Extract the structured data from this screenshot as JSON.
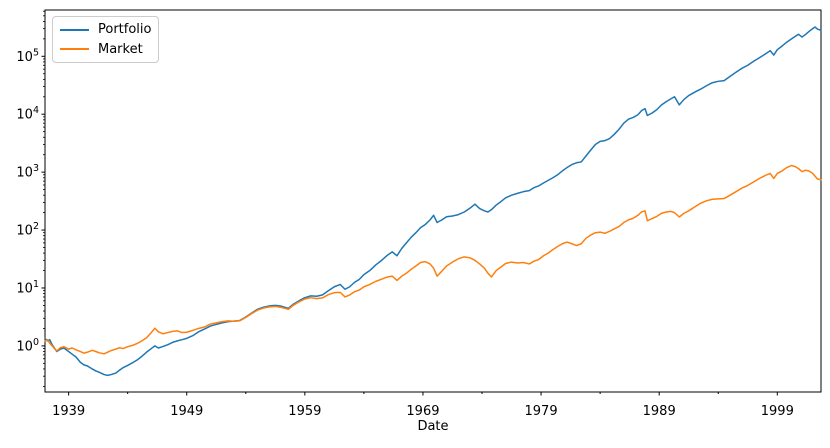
{
  "chart_data": {
    "type": "line",
    "title": "",
    "xlabel": "Date",
    "ylabel": "",
    "x_scale": "linear",
    "y_scale": "log",
    "grid": false,
    "legend_position": "upper left",
    "xlim": [
      1937.0,
      2002.7
    ],
    "ylim": [
      0.16,
      630000
    ],
    "x_ticks": [
      {
        "value": 1939,
        "label": "1939"
      },
      {
        "value": 1949,
        "label": "1949"
      },
      {
        "value": 1959,
        "label": "1959"
      },
      {
        "value": 1969,
        "label": "1969"
      },
      {
        "value": 1979,
        "label": "1979"
      },
      {
        "value": 1989,
        "label": "1989"
      },
      {
        "value": 1999,
        "label": "1999"
      }
    ],
    "x_minor_ticks": [
      1944,
      1954,
      1964,
      1974,
      1984,
      1994
    ],
    "y_ticks": [
      {
        "value": 1,
        "base": "10",
        "exp": "0"
      },
      {
        "value": 10,
        "base": "10",
        "exp": "1"
      },
      {
        "value": 100,
        "base": "10",
        "exp": "2"
      },
      {
        "value": 1000,
        "base": "10",
        "exp": "3"
      },
      {
        "value": 10000,
        "base": "10",
        "exp": "4"
      },
      {
        "value": 100000,
        "base": "10",
        "exp": "5"
      }
    ],
    "x": [
      1937.0,
      1937.2,
      1937.4,
      1937.6,
      1937.8,
      1938.0,
      1938.3,
      1938.6,
      1939.0,
      1939.3,
      1939.6,
      1940.0,
      1940.3,
      1940.6,
      1941.0,
      1941.3,
      1941.6,
      1942.0,
      1942.3,
      1942.6,
      1943.0,
      1943.3,
      1943.6,
      1944.0,
      1944.4,
      1944.8,
      1945.2,
      1945.6,
      1946.0,
      1946.3,
      1946.6,
      1947.0,
      1947.4,
      1947.8,
      1948.2,
      1948.6,
      1949.0,
      1949.5,
      1950.0,
      1950.5,
      1951.0,
      1951.5,
      1952.0,
      1952.5,
      1953.0,
      1953.5,
      1954.0,
      1954.5,
      1955.0,
      1955.5,
      1956.0,
      1956.5,
      1957.0,
      1957.6,
      1958.0,
      1958.5,
      1959.0,
      1959.5,
      1960.0,
      1960.5,
      1961.0,
      1961.5,
      1962.0,
      1962.4,
      1962.8,
      1963.2,
      1963.6,
      1964.0,
      1964.5,
      1965.0,
      1965.5,
      1966.0,
      1966.4,
      1966.8,
      1967.2,
      1967.6,
      1968.0,
      1968.4,
      1968.8,
      1969.2,
      1969.6,
      1969.9,
      1970.2,
      1970.6,
      1971.0,
      1971.5,
      1972.0,
      1972.5,
      1973.0,
      1973.4,
      1973.8,
      1974.2,
      1974.5,
      1974.8,
      1975.2,
      1975.6,
      1976.0,
      1976.5,
      1977.0,
      1977.5,
      1978.0,
      1978.4,
      1978.8,
      1979.2,
      1979.6,
      1980.0,
      1980.4,
      1980.8,
      1981.2,
      1981.6,
      1982.0,
      1982.4,
      1982.8,
      1983.2,
      1983.6,
      1984.0,
      1984.4,
      1984.8,
      1985.2,
      1985.6,
      1986.0,
      1986.4,
      1986.8,
      1987.2,
      1987.5,
      1987.8,
      1988.0,
      1988.4,
      1988.8,
      1989.2,
      1989.6,
      1990.0,
      1990.3,
      1990.7,
      1991.1,
      1991.5,
      1992.0,
      1992.5,
      1993.0,
      1993.5,
      1994.0,
      1994.5,
      1995.0,
      1995.5,
      1996.0,
      1996.5,
      1997.0,
      1997.5,
      1998.0,
      1998.4,
      1998.7,
      1999.0,
      1999.4,
      1999.8,
      2000.2,
      2000.5,
      2000.8,
      2001.1,
      2001.4,
      2001.7,
      2002.0,
      2002.2,
      2002.4,
      2002.7
    ],
    "series": [
      {
        "name": "Portfolio",
        "color": "#1f77b4",
        "values": [
          1.35,
          1.22,
          1.28,
          1.05,
          0.92,
          0.8,
          0.88,
          0.92,
          0.8,
          0.72,
          0.65,
          0.52,
          0.47,
          0.45,
          0.4,
          0.37,
          0.35,
          0.32,
          0.31,
          0.32,
          0.34,
          0.38,
          0.42,
          0.46,
          0.51,
          0.57,
          0.66,
          0.78,
          0.9,
          1.0,
          0.92,
          0.98,
          1.05,
          1.15,
          1.22,
          1.28,
          1.35,
          1.5,
          1.75,
          1.95,
          2.2,
          2.35,
          2.5,
          2.62,
          2.68,
          2.75,
          3.15,
          3.7,
          4.3,
          4.65,
          4.9,
          5.0,
          4.85,
          4.45,
          5.2,
          6.0,
          6.8,
          7.3,
          7.2,
          7.6,
          9.0,
          10.5,
          11.5,
          9.5,
          10.5,
          12.5,
          14,
          17,
          20,
          25,
          30,
          37,
          42,
          36,
          48,
          60,
          75,
          90,
          110,
          125,
          150,
          180,
          135,
          150,
          170,
          175,
          185,
          205,
          240,
          280,
          235,
          215,
          205,
          225,
          270,
          310,
          360,
          400,
          430,
          460,
          480,
          540,
          580,
          650,
          720,
          800,
          900,
          1050,
          1200,
          1350,
          1450,
          1500,
          1900,
          2400,
          3000,
          3400,
          3500,
          3800,
          4500,
          5500,
          7000,
          8200,
          8800,
          9800,
          11500,
          12500,
          9500,
          10500,
          12000,
          14500,
          16500,
          18500,
          20000,
          14500,
          18000,
          21000,
          24000,
          27000,
          31000,
          35000,
          37000,
          38000,
          45000,
          53000,
          62000,
          70000,
          82000,
          95000,
          110000,
          125000,
          105000,
          130000,
          150000,
          175000,
          200000,
          220000,
          240000,
          215000,
          240000,
          270000,
          300000,
          320000,
          295000,
          280000
        ]
      },
      {
        "name": "Market",
        "color": "#ff7f0e",
        "values": [
          1.22,
          1.28,
          1.12,
          1.0,
          0.9,
          0.82,
          0.93,
          0.97,
          0.88,
          0.92,
          0.86,
          0.8,
          0.75,
          0.78,
          0.84,
          0.8,
          0.76,
          0.73,
          0.78,
          0.83,
          0.88,
          0.93,
          0.9,
          0.97,
          1.02,
          1.1,
          1.22,
          1.38,
          1.7,
          2.02,
          1.75,
          1.62,
          1.7,
          1.78,
          1.82,
          1.7,
          1.72,
          1.85,
          2.0,
          2.12,
          2.38,
          2.5,
          2.62,
          2.7,
          2.66,
          2.72,
          3.1,
          3.62,
          4.15,
          4.5,
          4.72,
          4.8,
          4.62,
          4.28,
          5.0,
          5.75,
          6.45,
          6.8,
          6.55,
          6.75,
          7.7,
          8.3,
          8.4,
          7.0,
          7.6,
          8.6,
          9.2,
          10.5,
          11.5,
          13.0,
          14.2,
          15.5,
          16.0,
          13.5,
          16.0,
          18.0,
          21.0,
          24.0,
          27.5,
          28.5,
          26.0,
          22.0,
          16.0,
          19.5,
          24.0,
          28.0,
          32.0,
          34.5,
          33.0,
          30.0,
          26.0,
          22.0,
          18.0,
          15.5,
          20.0,
          23.0,
          26.5,
          28.0,
          27.0,
          27.5,
          26.0,
          29.0,
          31.0,
          36.0,
          40.0,
          46.0,
          52.0,
          58.0,
          62.0,
          58.0,
          54.0,
          58.0,
          72.0,
          82.0,
          90.0,
          92.0,
          88.0,
          95.0,
          105,
          115,
          135,
          150,
          160,
          180,
          205,
          215,
          145,
          158,
          172,
          195,
          205,
          210,
          200,
          168,
          195,
          215,
          250,
          290,
          320,
          340,
          345,
          350,
          400,
          460,
          530,
          590,
          680,
          780,
          880,
          950,
          780,
          950,
          1050,
          1200,
          1300,
          1250,
          1150,
          1020,
          1080,
          1040,
          950,
          850,
          760,
          740
        ]
      }
    ]
  }
}
